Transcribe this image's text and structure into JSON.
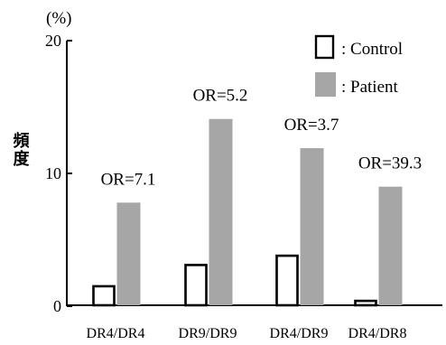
{
  "chart_data": {
    "type": "bar",
    "unit_label": "(%)",
    "ylabel": "頻度",
    "ylim": [
      0,
      20
    ],
    "yticks": [
      "0",
      "10",
      "20"
    ],
    "ytick_values": [
      0,
      10,
      20
    ],
    "categories": [
      "DR4/DR4",
      "DR9/DR9",
      "DR4/DR9",
      "DR4/DR8"
    ],
    "series": [
      {
        "name": ": Control",
        "values": [
          1.5,
          3.1,
          3.8,
          0.4
        ],
        "fill": "#ffffff",
        "stroke": "#000000"
      },
      {
        "name": ": Patient",
        "values": [
          7.8,
          14.1,
          11.9,
          9.0
        ],
        "fill": "#a6a6a6",
        "stroke": "none"
      }
    ],
    "annotations": [
      "OR=7.1",
      "OR=5.2",
      "OR=3.7",
      "OR=39.3"
    ],
    "legend": "top-right",
    "grid": false
  }
}
